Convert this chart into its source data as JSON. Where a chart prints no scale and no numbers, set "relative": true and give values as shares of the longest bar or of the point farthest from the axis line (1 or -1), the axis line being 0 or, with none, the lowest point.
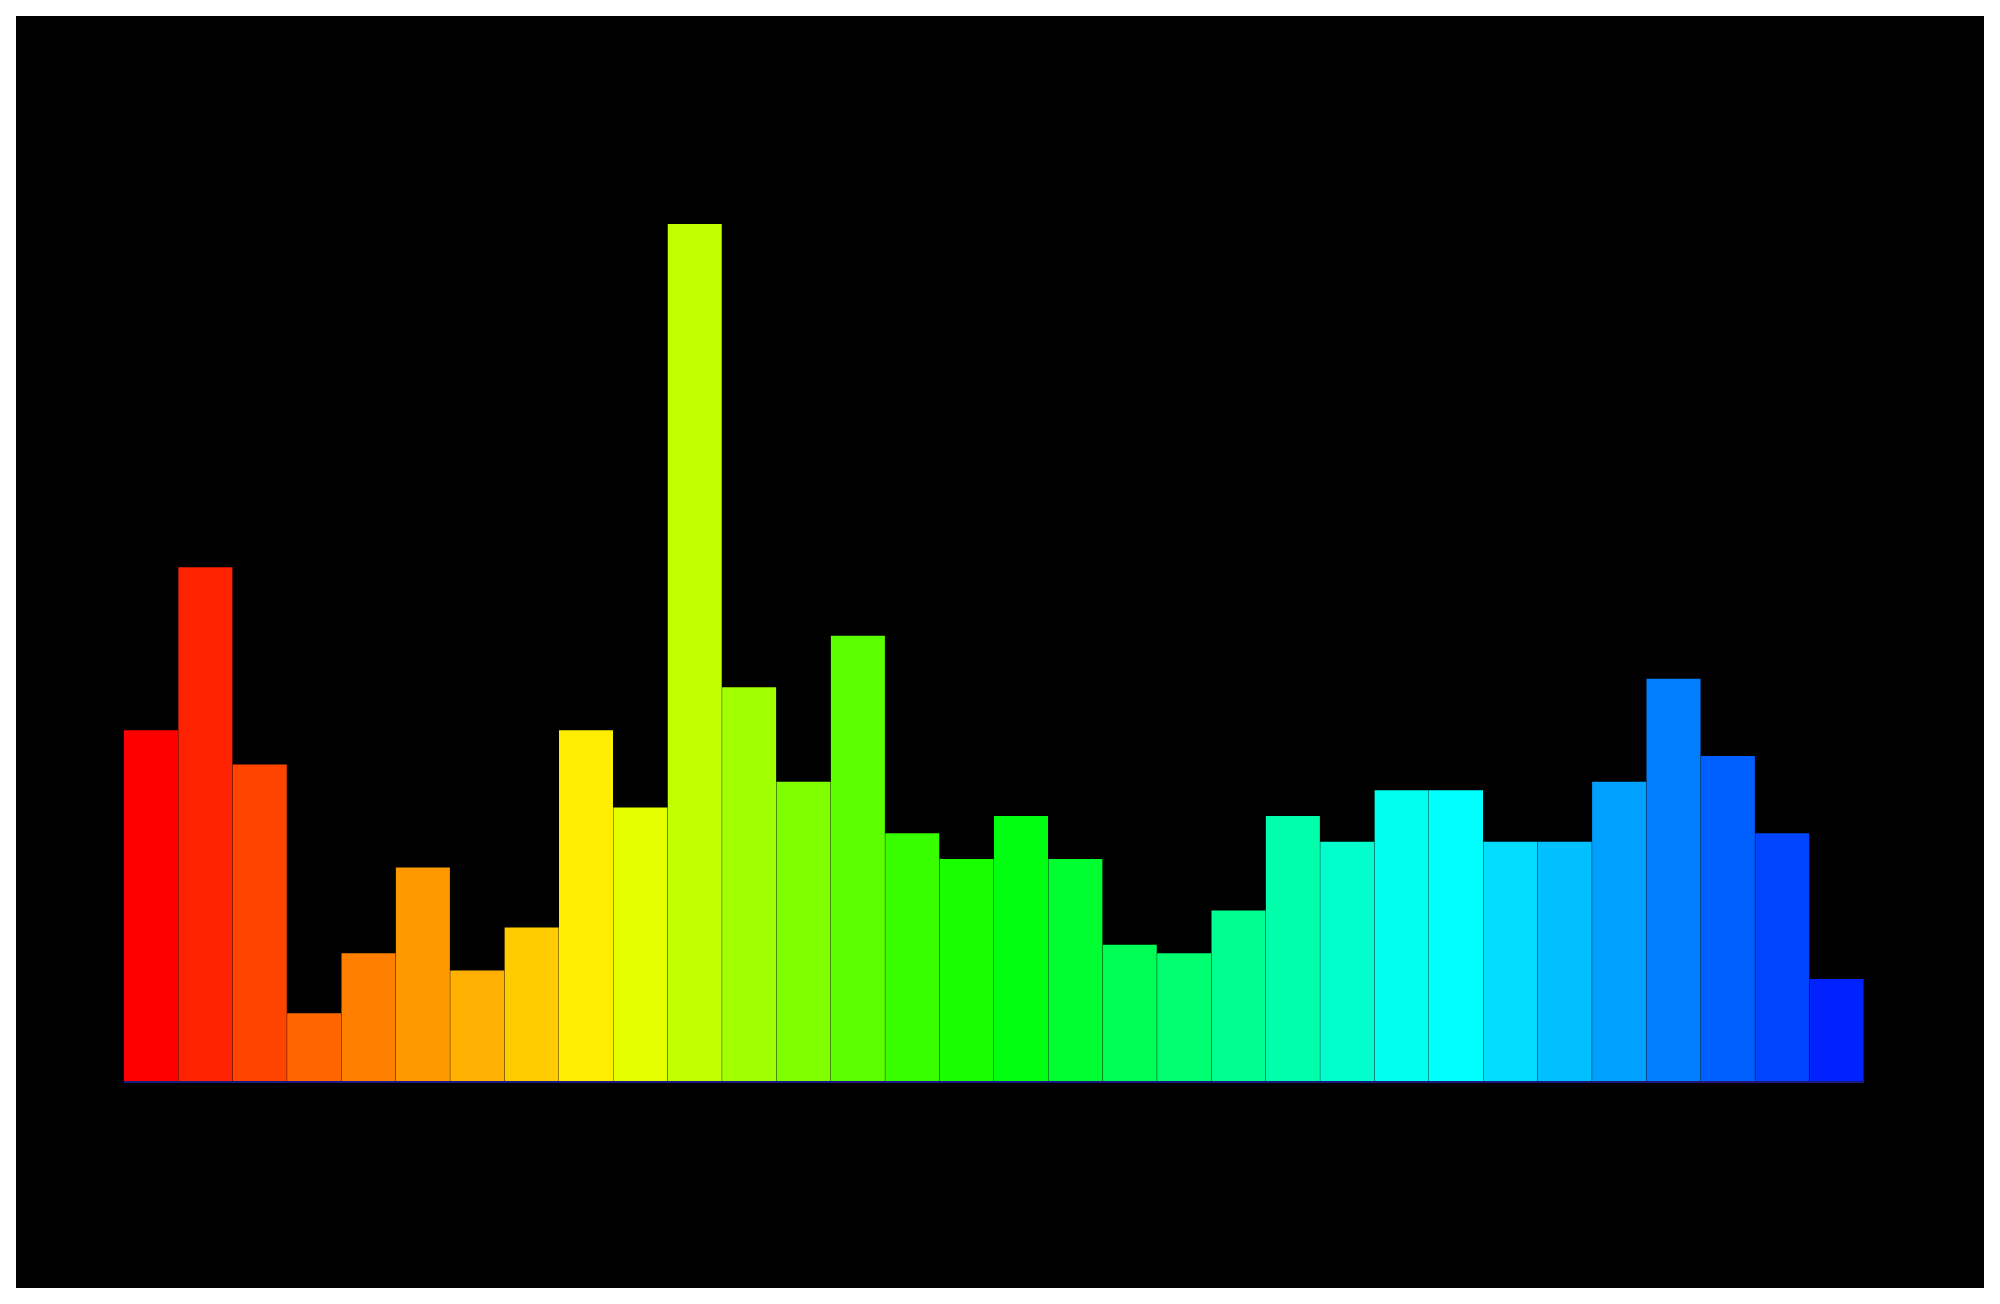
{
  "chart_data": {
    "type": "bar",
    "relative": true,
    "categories": [
      null,
      null,
      null,
      null,
      null,
      null,
      null,
      null,
      null,
      null,
      null,
      null,
      null,
      null,
      null,
      null,
      null,
      null,
      null,
      null,
      null,
      null,
      null,
      null,
      null,
      null,
      null,
      null,
      null,
      null,
      null,
      null
    ],
    "values": [
      0.41,
      0.6,
      0.37,
      0.08,
      0.15,
      0.25,
      0.13,
      0.18,
      0.41,
      0.32,
      1,
      0.46,
      0.35,
      0.52,
      0.29,
      0.26,
      0.31,
      0.26,
      0.16,
      0.15,
      0.2,
      0.31,
      0.28,
      0.34,
      0.34,
      0.28,
      0.28,
      0.35,
      0.47,
      0.38,
      0.29,
      0.12
    ],
    "colors": [
      "#ff0000",
      "#ff2200",
      "#ff4400",
      "#ff6600",
      "#ff7f00",
      "#ff9900",
      "#ffb000",
      "#ffcc00",
      "#ffee00",
      "#e5ff00",
      "#c0ff00",
      "#a0ff00",
      "#80ff00",
      "#5cff00",
      "#38ff00",
      "#18ff00",
      "#00ff10",
      "#00ff30",
      "#00ff55",
      "#00ff70",
      "#00ff90",
      "#00ffaa",
      "#00ffcc",
      "#00ffee",
      "#00ffff",
      "#00ddff",
      "#00c0ff",
      "#00a0ff",
      "#0080ff",
      "#0060ff",
      "#0044ff",
      "#0022ff"
    ]
  }
}
